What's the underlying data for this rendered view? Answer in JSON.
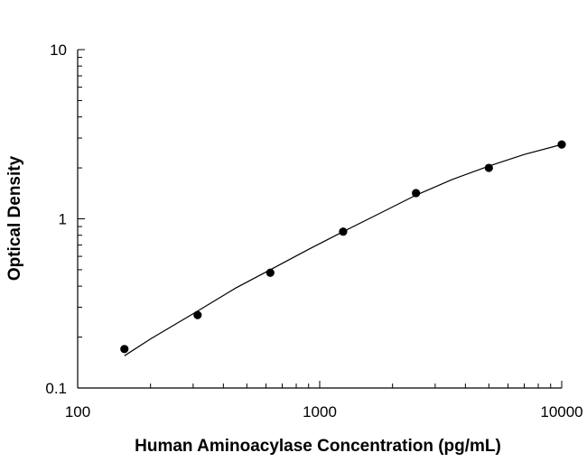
{
  "chart_data": {
    "type": "scatter",
    "title": "",
    "xlabel": "Human Aminoacylase Concentration (pg/mL)",
    "ylabel": "Optical Density",
    "x_scale": "log",
    "y_scale": "log",
    "xlim": [
      100,
      10000
    ],
    "ylim": [
      0.1,
      10
    ],
    "x_ticks": [
      {
        "value": 100,
        "label": "100"
      },
      {
        "value": 1000,
        "label": "1000"
      },
      {
        "value": 10000,
        "label": "10000"
      }
    ],
    "y_ticks": [
      {
        "value": 0.1,
        "label": "0.1"
      },
      {
        "value": 1,
        "label": "1"
      },
      {
        "value": 10,
        "label": "10"
      }
    ],
    "grid": false,
    "legend": "none",
    "series": [
      {
        "kind": "points",
        "marker": "filled-circle",
        "color": "#000000",
        "x": [
          156,
          313,
          625,
          1250,
          2500,
          5000,
          10000
        ],
        "y": [
          0.17,
          0.27,
          0.48,
          0.84,
          1.42,
          2.0,
          2.75
        ]
      },
      {
        "kind": "fit-curve",
        "color": "#000000",
        "x": [
          156,
          200,
          313,
          450,
          625,
          900,
          1250,
          1800,
          2500,
          3500,
          5000,
          7000,
          10000
        ],
        "y": [
          0.155,
          0.195,
          0.285,
          0.39,
          0.5,
          0.66,
          0.84,
          1.09,
          1.38,
          1.7,
          2.05,
          2.4,
          2.75
        ]
      }
    ]
  }
}
